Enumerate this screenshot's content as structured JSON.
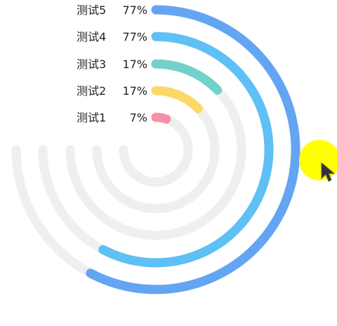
{
  "chart_data": {
    "type": "radial-bar",
    "categories": [
      "测试1",
      "测试2",
      "测试3",
      "测试4",
      "测试5"
    ],
    "series": [
      {
        "values": [
          7,
          17,
          17,
          77,
          77
        ]
      }
    ],
    "value_labels": [
      "7%",
      "17%",
      "17%",
      "77%",
      "77%"
    ],
    "colors": [
      "#f78fa8",
      "#fcd966",
      "#72d1c8",
      "#5ec0f5",
      "#64a5f2"
    ],
    "track_color": "#efefef",
    "range": [
      0,
      100
    ],
    "sweep": "three-quarter"
  },
  "overlay": {
    "cursor_icon": "mouse-pointer-icon",
    "highlight_color": "#ffff00"
  }
}
